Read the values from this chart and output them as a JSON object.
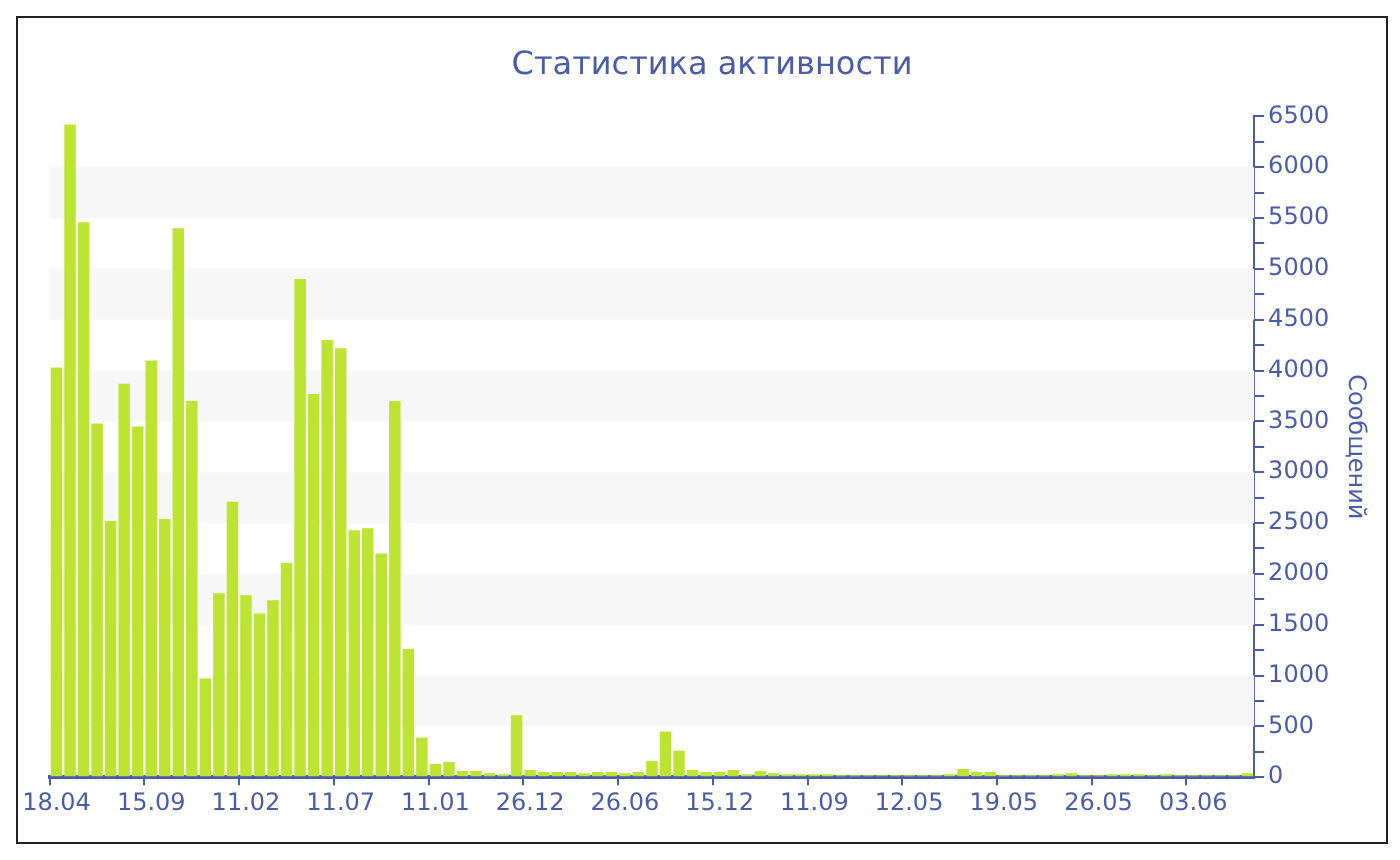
{
  "chart_data": {
    "type": "bar",
    "title": "Статистика активности",
    "ylabel": "Сообщений",
    "categories": [
      "18.04",
      null,
      null,
      null,
      null,
      null,
      null,
      "15.09",
      null,
      null,
      null,
      null,
      null,
      null,
      "11.02",
      null,
      null,
      null,
      null,
      null,
      null,
      "11.07",
      null,
      null,
      null,
      null,
      null,
      null,
      "11.01",
      null,
      null,
      null,
      null,
      null,
      null,
      "26.12",
      null,
      null,
      null,
      null,
      null,
      null,
      "26.06",
      null,
      null,
      null,
      null,
      null,
      null,
      "15.12",
      null,
      null,
      null,
      null,
      null,
      null,
      "11.09",
      null,
      null,
      null,
      null,
      null,
      null,
      "12.05",
      null,
      null,
      null,
      null,
      null,
      null,
      "19.05",
      null,
      null,
      null,
      null,
      null,
      null,
      "26.05",
      null,
      null,
      null,
      null,
      null,
      null,
      "03.06",
      null,
      null,
      null,
      null
    ],
    "values": [
      4030,
      6420,
      5460,
      3480,
      2520,
      3870,
      3450,
      4100,
      2540,
      5400,
      3700,
      970,
      1810,
      2710,
      1790,
      1610,
      1740,
      2110,
      4900,
      3770,
      4300,
      4220,
      2430,
      2450,
      2200,
      3700,
      1260,
      390,
      130,
      150,
      60,
      60,
      40,
      30,
      610,
      70,
      50,
      50,
      50,
      40,
      50,
      50,
      40,
      50,
      160,
      450,
      260,
      70,
      50,
      50,
      70,
      30,
      60,
      40,
      30,
      30,
      30,
      30,
      20,
      20,
      20,
      20,
      20,
      20,
      20,
      20,
      30,
      80,
      50,
      50,
      20,
      20,
      20,
      20,
      30,
      40,
      20,
      20,
      30,
      30,
      30,
      20,
      30,
      20,
      20,
      20,
      20,
      20,
      40
    ],
    "color": "#bde333",
    "ylim": [
      0,
      6500
    ],
    "yticks": [
      0,
      {
        "value": 250,
        "label": null
      },
      500,
      {
        "value": 750,
        "label": null
      },
      1000,
      {
        "value": 1250,
        "label": null
      },
      1500,
      {
        "value": 1750,
        "label": null
      },
      2000,
      {
        "value": 2250,
        "label": null
      },
      2500,
      {
        "value": 2750,
        "label": null
      },
      3000,
      {
        "value": 3250,
        "label": null
      },
      3500,
      {
        "value": 3750,
        "label": null
      },
      4000,
      {
        "value": 4250,
        "label": null
      },
      4500,
      {
        "value": 4750,
        "label": null
      },
      5000,
      {
        "value": 5250,
        "label": null
      },
      5500,
      {
        "value": 5750,
        "label": null
      },
      6000,
      {
        "value": 6250,
        "label": null
      },
      6500
    ],
    "bands": [
      {
        "axis": "y",
        "from": 500,
        "to": 1000,
        "color": "#f7f7f7"
      },
      {
        "axis": "y",
        "from": 1500,
        "to": 2000,
        "color": "#f7f7f7"
      },
      {
        "axis": "y",
        "from": 2500,
        "to": 3000,
        "color": "#f7f7f7"
      },
      {
        "axis": "y",
        "from": 3500,
        "to": 4000,
        "color": "#f7f7f7"
      },
      {
        "axis": "y",
        "from": 4500,
        "to": 5000,
        "color": "#f7f7f7"
      },
      {
        "axis": "y",
        "from": 5500,
        "to": 6000,
        "color": "#f7f7f7"
      }
    ]
  }
}
